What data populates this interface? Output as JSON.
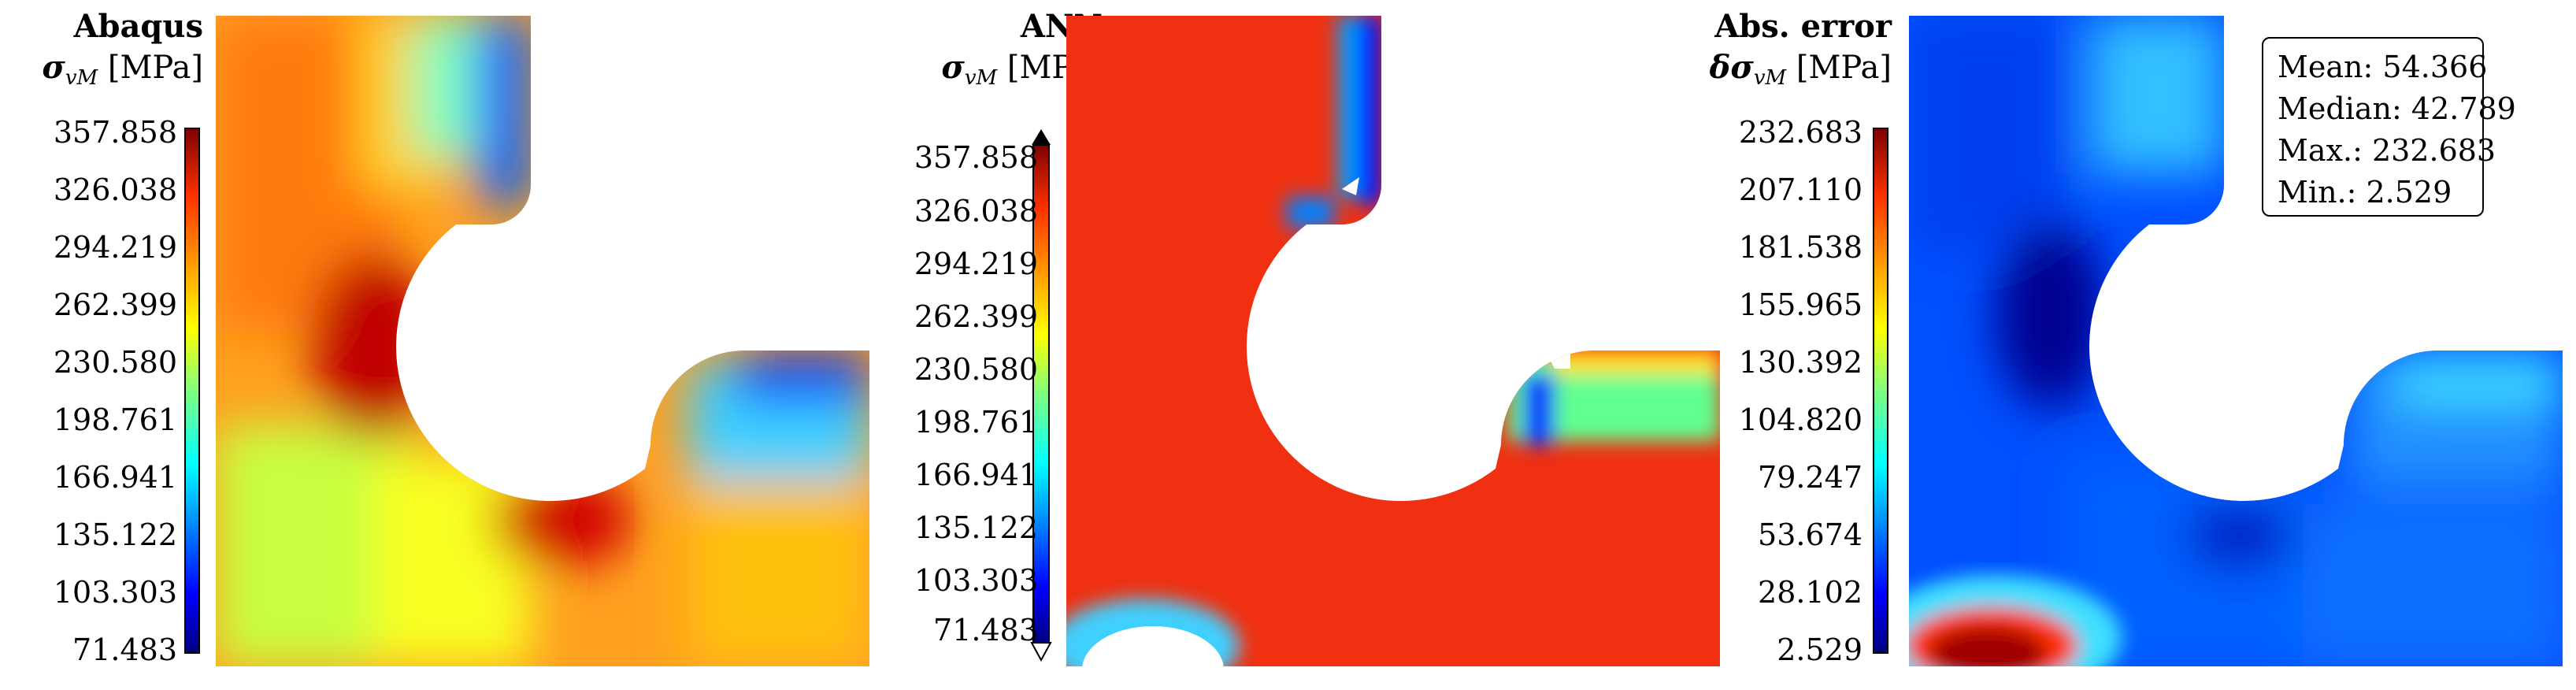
{
  "panels": [
    {
      "title": "Abaqus",
      "unit_symbol": "σ",
      "unit_sub": "vM",
      "unit_text": " [MPa]",
      "ticks": [
        "357.858",
        "326.038",
        "294.219",
        "262.399",
        "230.580",
        "198.761",
        "166.941",
        "135.122",
        "103.303",
        "71.483"
      ]
    },
    {
      "title": "ANN",
      "unit_symbol": "σ",
      "unit_sub": "vM",
      "unit_text": " [MPa]",
      "ticks": [
        "357.858",
        "326.038",
        "294.219",
        "262.399",
        "230.580",
        "198.761",
        "166.941",
        "135.122",
        "103.303",
        "71.483"
      ]
    },
    {
      "title": "Abs. error",
      "unit_symbol": "δσ",
      "unit_sub": "vM",
      "unit_text": " [MPa]",
      "ticks": [
        "232.683",
        "207.110",
        "181.538",
        "155.965",
        "130.392",
        "104.820",
        "79.247",
        "53.674",
        "28.102",
        "2.529"
      ]
    }
  ],
  "stats": {
    "mean": "Mean: 54.366",
    "median": "Median: 42.789",
    "max": "Max.: 232.683",
    "min": "Min.: 2.529"
  },
  "colors": {
    "jet": [
      "#00007f",
      "#0000ff",
      "#007fff",
      "#00ffff",
      "#7fff7f",
      "#ffff00",
      "#ff7f00",
      "#ff0000",
      "#7f0000"
    ]
  }
}
